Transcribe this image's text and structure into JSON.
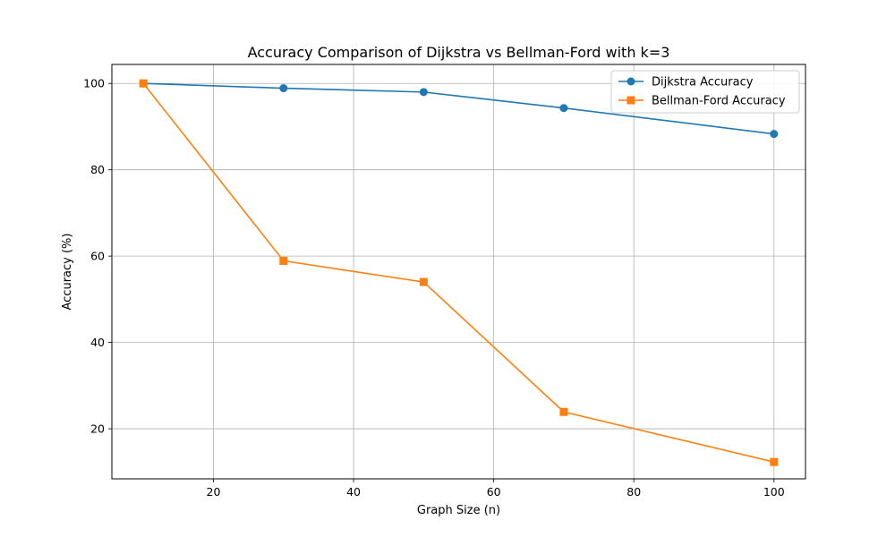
{
  "chart_data": {
    "type": "line",
    "title": "Accuracy Comparison of Dijkstra vs Bellman-Ford with k=3",
    "xlabel": "Graph Size (n)",
    "ylabel": "Accuracy (%)",
    "xlim": [
      5.5,
      104.5
    ],
    "ylim": [
      8.4,
      104.4
    ],
    "xticks": [
      20,
      40,
      60,
      80,
      100
    ],
    "yticks": [
      20,
      40,
      60,
      80,
      100
    ],
    "grid": true,
    "legend_position": "top-right",
    "x": [
      10,
      30,
      50,
      70,
      100
    ],
    "series": [
      {
        "name": "Dijkstra Accuracy",
        "marker": "circle",
        "color": "#1f77b4",
        "values": [
          100,
          98.9,
          98.0,
          94.3,
          88.3
        ]
      },
      {
        "name": "Bellman-Ford Accuracy",
        "marker": "square",
        "color": "#ff7f0e",
        "values": [
          100,
          58.9,
          54.0,
          23.9,
          12.3
        ]
      }
    ]
  }
}
